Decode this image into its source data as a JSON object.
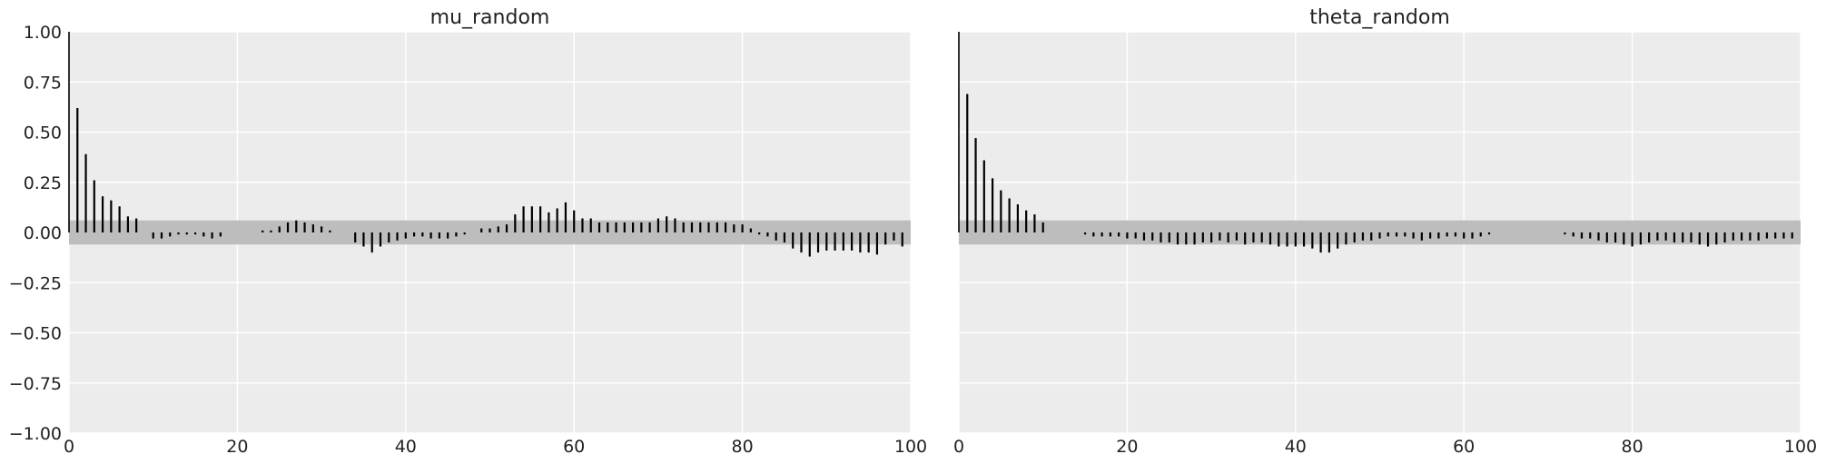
{
  "chart_data": [
    {
      "type": "bar",
      "subtype": "autocorrelation-stem",
      "title": "mu_random",
      "xlabel": "",
      "ylabel": "",
      "xlim": [
        0,
        100
      ],
      "ylim": [
        -1.0,
        1.0
      ],
      "xticks": [
        "0",
        "20",
        "40",
        "60",
        "80",
        "100"
      ],
      "yticks": [
        "1.00",
        "0.75",
        "0.50",
        "0.25",
        "0.00",
        "−0.25",
        "−0.50",
        "−0.75",
        "−1.00"
      ],
      "grid": true,
      "confidence_band": [
        -0.06,
        0.06
      ],
      "lags": [
        0,
        1,
        2,
        3,
        4,
        5,
        6,
        7,
        8,
        9,
        10,
        11,
        12,
        13,
        14,
        15,
        16,
        17,
        18,
        19,
        20,
        21,
        22,
        23,
        24,
        25,
        26,
        27,
        28,
        29,
        30,
        31,
        32,
        33,
        34,
        35,
        36,
        37,
        38,
        39,
        40,
        41,
        42,
        43,
        44,
        45,
        46,
        47,
        48,
        49,
        50,
        51,
        52,
        53,
        54,
        55,
        56,
        57,
        58,
        59,
        60,
        61,
        62,
        63,
        64,
        65,
        66,
        67,
        68,
        69,
        70,
        71,
        72,
        73,
        74,
        75,
        76,
        77,
        78,
        79,
        80,
        81,
        82,
        83,
        84,
        85,
        86,
        87,
        88,
        89,
        90,
        91,
        92,
        93,
        94,
        95,
        96,
        97,
        98,
        99
      ],
      "values": [
        1.0,
        0.62,
        0.39,
        0.26,
        0.18,
        0.16,
        0.13,
        0.08,
        0.07,
        0.0,
        -0.03,
        -0.03,
        -0.02,
        -0.01,
        -0.01,
        -0.01,
        -0.02,
        -0.03,
        -0.02,
        0.0,
        0.0,
        0.0,
        0.0,
        0.01,
        0.01,
        0.03,
        0.05,
        0.06,
        0.05,
        0.04,
        0.03,
        0.01,
        0.0,
        0.0,
        -0.05,
        -0.07,
        -0.1,
        -0.07,
        -0.05,
        -0.04,
        -0.03,
        -0.02,
        -0.02,
        -0.03,
        -0.03,
        -0.03,
        -0.02,
        -0.01,
        0.0,
        0.02,
        0.02,
        0.03,
        0.04,
        0.09,
        0.13,
        0.13,
        0.13,
        0.1,
        0.12,
        0.15,
        0.11,
        0.07,
        0.07,
        0.05,
        0.05,
        0.05,
        0.05,
        0.05,
        0.05,
        0.05,
        0.07,
        0.08,
        0.07,
        0.05,
        0.05,
        0.05,
        0.05,
        0.05,
        0.05,
        0.04,
        0.04,
        0.02,
        -0.01,
        -0.02,
        -0.04,
        -0.05,
        -0.08,
        -0.1,
        -0.12,
        -0.1,
        -0.09,
        -0.09,
        -0.09,
        -0.09,
        -0.1,
        -0.1,
        -0.11,
        -0.06,
        -0.04,
        -0.07
      ]
    },
    {
      "type": "bar",
      "subtype": "autocorrelation-stem",
      "title": "theta_random",
      "xlabel": "",
      "ylabel": "",
      "xlim": [
        0,
        100
      ],
      "ylim": [
        -1.0,
        1.0
      ],
      "xticks": [
        "0",
        "20",
        "40",
        "60",
        "80",
        "100"
      ],
      "grid": true,
      "confidence_band": [
        -0.06,
        0.06
      ],
      "lags": [
        0,
        1,
        2,
        3,
        4,
        5,
        6,
        7,
        8,
        9,
        10,
        11,
        12,
        13,
        14,
        15,
        16,
        17,
        18,
        19,
        20,
        21,
        22,
        23,
        24,
        25,
        26,
        27,
        28,
        29,
        30,
        31,
        32,
        33,
        34,
        35,
        36,
        37,
        38,
        39,
        40,
        41,
        42,
        43,
        44,
        45,
        46,
        47,
        48,
        49,
        50,
        51,
        52,
        53,
        54,
        55,
        56,
        57,
        58,
        59,
        60,
        61,
        62,
        63,
        64,
        65,
        66,
        67,
        68,
        69,
        70,
        71,
        72,
        73,
        74,
        75,
        76,
        77,
        78,
        79,
        80,
        81,
        82,
        83,
        84,
        85,
        86,
        87,
        88,
        89,
        90,
        91,
        92,
        93,
        94,
        95,
        96,
        97,
        98,
        99
      ],
      "values": [
        1.0,
        0.69,
        0.47,
        0.36,
        0.27,
        0.21,
        0.17,
        0.14,
        0.11,
        0.09,
        0.05,
        0.0,
        0.0,
        0.0,
        0.0,
        -0.01,
        -0.02,
        -0.02,
        -0.02,
        -0.02,
        -0.03,
        -0.03,
        -0.04,
        -0.04,
        -0.05,
        -0.05,
        -0.06,
        -0.06,
        -0.06,
        -0.05,
        -0.05,
        -0.04,
        -0.05,
        -0.04,
        -0.06,
        -0.05,
        -0.05,
        -0.06,
        -0.07,
        -0.07,
        -0.07,
        -0.07,
        -0.08,
        -0.1,
        -0.1,
        -0.08,
        -0.06,
        -0.05,
        -0.04,
        -0.04,
        -0.03,
        -0.02,
        -0.02,
        -0.02,
        -0.03,
        -0.04,
        -0.03,
        -0.03,
        -0.02,
        -0.02,
        -0.03,
        -0.03,
        -0.02,
        -0.01,
        0.0,
        0.0,
        0.0,
        0.0,
        0.0,
        0.0,
        0.0,
        0.0,
        -0.01,
        -0.02,
        -0.03,
        -0.03,
        -0.04,
        -0.05,
        -0.05,
        -0.06,
        -0.07,
        -0.06,
        -0.05,
        -0.04,
        -0.04,
        -0.05,
        -0.05,
        -0.05,
        -0.06,
        -0.07,
        -0.06,
        -0.05,
        -0.04,
        -0.04,
        -0.04,
        -0.04,
        -0.03,
        -0.03,
        -0.03,
        -0.03
      ]
    }
  ],
  "colors": {
    "background": "#ffffff",
    "plot_area": "#ececec",
    "grid": "#ffffff",
    "band": "#bdbdbd",
    "stem": "#000000",
    "text": "#222222"
  }
}
